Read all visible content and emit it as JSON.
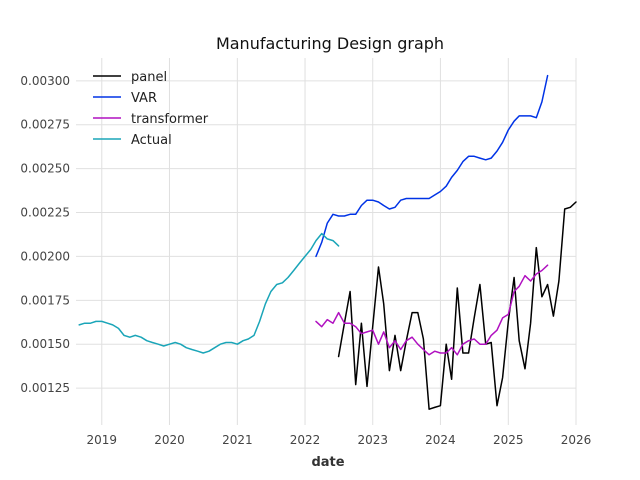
{
  "chart_data": {
    "type": "line",
    "title": "Manufacturing Design graph",
    "xlabel": "date",
    "ylabel": "",
    "x_ticks": [
      "2019",
      "2020",
      "2021",
      "2022",
      "2023",
      "2024",
      "2025",
      "2026"
    ],
    "y_ticks": [
      "0.00125",
      "0.00150",
      "0.00175",
      "0.00200",
      "0.00225",
      "0.00250",
      "0.00275",
      "0.00300"
    ],
    "xlim": [
      "2018-08-15",
      "2026-01-01"
    ],
    "ylim": [
      0.00104,
      0.00313
    ],
    "grid": true,
    "legend": "top-left",
    "series": [
      {
        "name": "panel",
        "color": "#000000",
        "x": [
          "2022-07-01",
          "2022-08-01",
          "2022-09-01",
          "2022-10-01",
          "2022-11-01",
          "2022-12-01",
          "2023-01-01",
          "2023-02-01",
          "2023-03-01",
          "2023-04-01",
          "2023-05-01",
          "2023-06-01",
          "2023-07-01",
          "2023-08-01",
          "2023-09-01",
          "2023-10-01",
          "2023-11-01",
          "2023-12-01",
          "2024-01-01",
          "2024-02-01",
          "2024-03-01",
          "2024-04-01",
          "2024-05-01",
          "2024-06-01",
          "2024-07-01",
          "2024-08-01",
          "2024-09-01",
          "2024-10-01",
          "2024-11-01",
          "2024-12-01",
          "2025-01-01",
          "2025-02-01",
          "2025-03-01",
          "2025-04-01",
          "2025-05-01",
          "2025-06-01",
          "2025-07-01",
          "2025-08-01",
          "2025-09-01",
          "2025-10-01",
          "2025-11-01",
          "2025-12-01",
          "2026-01-01"
        ],
        "y": [
          0.00143,
          0.00162,
          0.0018,
          0.00127,
          0.00162,
          0.00126,
          0.0016,
          0.00194,
          0.00173,
          0.00135,
          0.00155,
          0.00135,
          0.00152,
          0.00168,
          0.00168,
          0.00153,
          0.00113,
          0.00114,
          0.00115,
          0.0015,
          0.0013,
          0.00182,
          0.00145,
          0.00145,
          0.00165,
          0.00184,
          0.0015,
          0.00151,
          0.00115,
          0.00131,
          0.00163,
          0.00188,
          0.00152,
          0.00136,
          0.00162,
          0.00205,
          0.00177,
          0.00184,
          0.00166,
          0.00186,
          0.00227,
          0.00228,
          0.00231
        ]
      },
      {
        "name": "VAR",
        "color": "#0033e6",
        "x": [
          "2022-03-01",
          "2022-04-01",
          "2022-05-01",
          "2022-06-01",
          "2022-07-01",
          "2022-08-01",
          "2022-09-01",
          "2022-10-01",
          "2022-11-01",
          "2022-12-01",
          "2023-01-01",
          "2023-02-01",
          "2023-03-01",
          "2023-04-01",
          "2023-05-01",
          "2023-06-01",
          "2023-07-01",
          "2023-08-01",
          "2023-09-01",
          "2023-10-01",
          "2023-11-01",
          "2023-12-01",
          "2024-01-01",
          "2024-02-01",
          "2024-03-01",
          "2024-04-01",
          "2024-05-01",
          "2024-06-01",
          "2024-07-01",
          "2024-08-01",
          "2024-09-01",
          "2024-10-01",
          "2024-11-01",
          "2024-12-01",
          "2025-01-01",
          "2025-02-01",
          "2025-03-01",
          "2025-04-01",
          "2025-05-01",
          "2025-06-01",
          "2025-07-01",
          "2025-08-01"
        ],
        "y": [
          0.002,
          0.00208,
          0.00219,
          0.00224,
          0.00223,
          0.00223,
          0.00224,
          0.00224,
          0.00229,
          0.00232,
          0.00232,
          0.00231,
          0.00229,
          0.00227,
          0.00228,
          0.00232,
          0.00233,
          0.00233,
          0.00233,
          0.00233,
          0.00233,
          0.00235,
          0.00237,
          0.0024,
          0.00245,
          0.00249,
          0.00254,
          0.00257,
          0.00257,
          0.00256,
          0.00255,
          0.00256,
          0.0026,
          0.00265,
          0.00272,
          0.00277,
          0.0028,
          0.0028,
          0.0028,
          0.00279,
          0.00288,
          0.00303
        ]
      },
      {
        "name": "transformer",
        "color": "#b010c0",
        "x": [
          "2022-03-01",
          "2022-04-01",
          "2022-05-01",
          "2022-06-01",
          "2022-07-01",
          "2022-08-01",
          "2022-09-01",
          "2022-10-01",
          "2022-11-01",
          "2022-12-01",
          "2023-01-01",
          "2023-02-01",
          "2023-03-01",
          "2023-04-01",
          "2023-05-01",
          "2023-06-01",
          "2023-07-01",
          "2023-08-01",
          "2023-09-01",
          "2023-10-01",
          "2023-11-01",
          "2023-12-01",
          "2024-01-01",
          "2024-02-01",
          "2024-03-01",
          "2024-04-01",
          "2024-05-01",
          "2024-06-01",
          "2024-07-01",
          "2024-08-01",
          "2024-09-01",
          "2024-10-01",
          "2024-11-01",
          "2024-12-01",
          "2025-01-01",
          "2025-02-01",
          "2025-03-01",
          "2025-04-01",
          "2025-05-01",
          "2025-06-01",
          "2025-07-01",
          "2025-08-01"
        ],
        "y": [
          0.00163,
          0.0016,
          0.00164,
          0.00162,
          0.00168,
          0.00162,
          0.00162,
          0.0016,
          0.00156,
          0.00157,
          0.00158,
          0.0015,
          0.00157,
          0.00148,
          0.00152,
          0.00147,
          0.00152,
          0.00154,
          0.0015,
          0.00147,
          0.00144,
          0.00146,
          0.00145,
          0.00145,
          0.00148,
          0.00144,
          0.0015,
          0.00152,
          0.00153,
          0.0015,
          0.0015,
          0.00155,
          0.00158,
          0.00165,
          0.00167,
          0.0018,
          0.00183,
          0.00189,
          0.00186,
          0.0019,
          0.00192,
          0.00195
        ]
      },
      {
        "name": "Actual",
        "color": "#1aa5b8",
        "x": [
          "2018-09-01",
          "2018-10-01",
          "2018-11-01",
          "2018-12-01",
          "2019-01-01",
          "2019-02-01",
          "2019-03-01",
          "2019-04-01",
          "2019-05-01",
          "2019-06-01",
          "2019-07-01",
          "2019-08-01",
          "2019-09-01",
          "2019-10-01",
          "2019-11-01",
          "2019-12-01",
          "2020-01-01",
          "2020-02-01",
          "2020-03-01",
          "2020-04-01",
          "2020-05-01",
          "2020-06-01",
          "2020-07-01",
          "2020-08-01",
          "2020-09-01",
          "2020-10-01",
          "2020-11-01",
          "2020-12-01",
          "2021-01-01",
          "2021-02-01",
          "2021-03-01",
          "2021-04-01",
          "2021-05-01",
          "2021-06-01",
          "2021-07-01",
          "2021-08-01",
          "2021-09-01",
          "2021-10-01",
          "2021-11-01",
          "2021-12-01",
          "2022-01-01",
          "2022-02-01",
          "2022-03-01",
          "2022-04-01",
          "2022-05-01",
          "2022-06-01",
          "2022-07-01"
        ],
        "y": [
          0.00161,
          0.00162,
          0.00162,
          0.00163,
          0.00163,
          0.00162,
          0.00161,
          0.00159,
          0.00155,
          0.00154,
          0.00155,
          0.00154,
          0.00152,
          0.00151,
          0.0015,
          0.00149,
          0.0015,
          0.00151,
          0.0015,
          0.00148,
          0.00147,
          0.00146,
          0.00145,
          0.00146,
          0.00148,
          0.0015,
          0.00151,
          0.00151,
          0.0015,
          0.00152,
          0.00153,
          0.00155,
          0.00163,
          0.00173,
          0.0018,
          0.00184,
          0.00185,
          0.00188,
          0.00192,
          0.00196,
          0.002,
          0.00204,
          0.00209,
          0.00213,
          0.0021,
          0.00209,
          0.00206
        ]
      }
    ]
  }
}
